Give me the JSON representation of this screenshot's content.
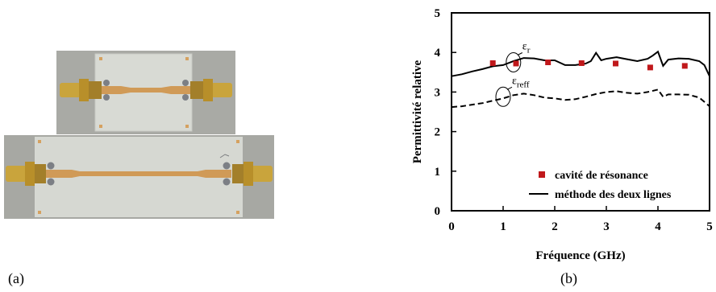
{
  "panels": {
    "a_label": "(a)",
    "b_label": "(b)"
  },
  "colors": {
    "marker": "#c0181b",
    "line": "#000000",
    "board": "#d6d8d2",
    "trace": "#d29a55",
    "connector": "#caa23d"
  },
  "chart_data": {
    "type": "line",
    "xlabel": "Fréquence (GHz)",
    "ylabel": "Permittivité relative",
    "xlim": [
      0,
      5
    ],
    "ylim": [
      0,
      5
    ],
    "xticks": [
      "0",
      "1",
      "2",
      "3",
      "4",
      "5"
    ],
    "yticks": [
      "0",
      "1",
      "2",
      "3",
      "4",
      "5"
    ],
    "grid": false,
    "legend_position": "bottom-right",
    "series": [
      {
        "name": "cavité de résonance",
        "style": "square-markers",
        "x": [
          0.8,
          1.25,
          1.87,
          2.52,
          3.18,
          3.85,
          4.52
        ],
        "y": [
          3.73,
          3.72,
          3.75,
          3.73,
          3.72,
          3.62,
          3.66
        ]
      },
      {
        "name": "méthode des deux lignes",
        "style": "solid",
        "x": [
          0,
          0.2,
          0.4,
          0.6,
          0.8,
          1.0,
          1.2,
          1.4,
          1.6,
          1.8,
          2.0,
          2.2,
          2.4,
          2.6,
          2.7,
          2.8,
          2.9,
          3.0,
          3.2,
          3.4,
          3.6,
          3.8,
          3.9,
          4.0,
          4.1,
          4.2,
          4.4,
          4.6,
          4.8,
          4.9,
          5.0
        ],
        "y": [
          3.4,
          3.45,
          3.52,
          3.58,
          3.65,
          3.68,
          3.78,
          3.86,
          3.85,
          3.8,
          3.8,
          3.68,
          3.68,
          3.72,
          3.78,
          3.99,
          3.8,
          3.84,
          3.88,
          3.83,
          3.78,
          3.84,
          3.92,
          4.02,
          3.66,
          3.82,
          3.85,
          3.84,
          3.78,
          3.68,
          3.4
        ]
      },
      {
        "name": "",
        "style": "dashed",
        "x": [
          0,
          0.2,
          0.4,
          0.6,
          0.8,
          1.0,
          1.2,
          1.4,
          1.6,
          1.8,
          2.0,
          2.2,
          2.4,
          2.6,
          2.8,
          3.0,
          3.2,
          3.4,
          3.6,
          3.8,
          4.0,
          4.1,
          4.2,
          4.4,
          4.6,
          4.8,
          5.0
        ],
        "y": [
          2.62,
          2.64,
          2.68,
          2.72,
          2.78,
          2.84,
          2.92,
          2.96,
          2.92,
          2.86,
          2.84,
          2.8,
          2.82,
          2.88,
          2.95,
          3.0,
          3.02,
          2.98,
          2.96,
          3.0,
          3.06,
          2.88,
          2.94,
          2.94,
          2.93,
          2.86,
          2.64
        ]
      }
    ],
    "annotations": [
      {
        "label": "εr",
        "x": 1.2,
        "y": 3.75
      },
      {
        "label": "εreff",
        "x": 1.0,
        "y": 2.88
      }
    ]
  }
}
